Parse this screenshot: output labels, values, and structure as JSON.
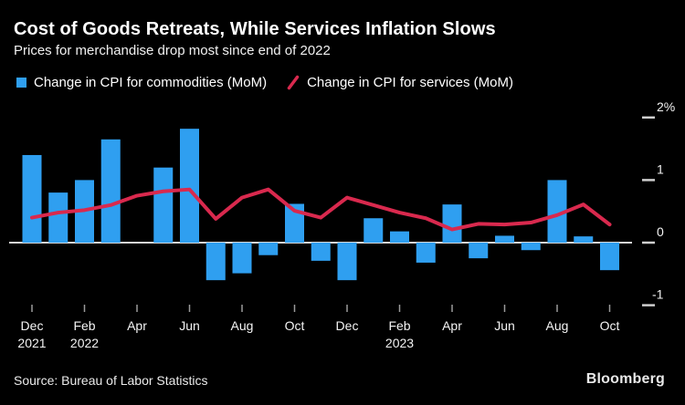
{
  "header": {
    "title": "Cost of Goods Retreats, While Services Inflation Slows",
    "subtitle": "Prices for merchandise drop most since end of 2022"
  },
  "legend": [
    {
      "label": "Change in CPI for commodities (MoM)",
      "marker": "square",
      "color": "#2f9ff0"
    },
    {
      "label": "Change in CPI for services (MoM)",
      "marker": "slash",
      "color": "#d9294e"
    }
  ],
  "chart_data": {
    "type": "combo",
    "x": [
      "Dec 2021",
      "Jan 2022",
      "Feb 2022",
      "Mar 2022",
      "Apr 2022",
      "May 2022",
      "Jun 2022",
      "Jul 2022",
      "Aug 2022",
      "Sep 2022",
      "Oct 2022",
      "Nov 2022",
      "Dec 2022",
      "Jan 2023",
      "Feb 2023",
      "Mar 2023",
      "Apr 2023",
      "May 2023",
      "Jun 2023",
      "Jul 2023",
      "Aug 2023",
      "Sep 2023",
      "Oct 2023"
    ],
    "series": [
      {
        "name": "Change in CPI for commodities (MoM)",
        "type": "bar",
        "color": "#2f9ff0",
        "values": [
          1.4,
          0.8,
          1.0,
          1.65,
          0.0,
          1.2,
          1.82,
          -0.6,
          -0.49,
          -0.2,
          0.62,
          -0.29,
          -0.6,
          0.39,
          0.18,
          -0.32,
          0.61,
          -0.25,
          0.11,
          -0.12,
          1.0,
          0.1,
          -0.44
        ]
      },
      {
        "name": "Change in CPI for services (MoM)",
        "type": "line",
        "color": "#d9294e",
        "values": [
          0.4,
          0.48,
          0.52,
          0.6,
          0.75,
          0.82,
          0.85,
          0.38,
          0.72,
          0.85,
          0.51,
          0.4,
          0.72,
          0.6,
          0.48,
          0.39,
          0.21,
          0.3,
          0.29,
          0.32,
          0.44,
          0.61,
          0.29
        ]
      }
    ],
    "unit": "%",
    "ylim": [
      -1.1,
      2.25
    ],
    "grid": false,
    "legend_position": "top",
    "y_ticks": [
      {
        "label": "2%",
        "value": 2
      },
      {
        "label": "1",
        "value": 1
      },
      {
        "label": "0",
        "value": 0
      },
      {
        "label": "-1",
        "value": -1
      }
    ],
    "x_ticks": [
      {
        "index": 0,
        "label": "Dec",
        "year": "2021"
      },
      {
        "index": 2,
        "label": "Feb",
        "year": "2022"
      },
      {
        "index": 4,
        "label": "Apr"
      },
      {
        "index": 6,
        "label": "Jun"
      },
      {
        "index": 8,
        "label": "Aug"
      },
      {
        "index": 10,
        "label": "Oct"
      },
      {
        "index": 12,
        "label": "Dec"
      },
      {
        "index": 14,
        "label": "Feb",
        "year": "2023"
      },
      {
        "index": 16,
        "label": "Apr"
      },
      {
        "index": 18,
        "label": "Jun"
      },
      {
        "index": 20,
        "label": "Aug"
      },
      {
        "index": 22,
        "label": "Oct"
      }
    ],
    "colors": {
      "background": "#000000",
      "baseline": "#d6d6d6",
      "axis_tick": "#9a9a9a",
      "text": "#ffffff"
    }
  },
  "footer": {
    "source": "Source: Bureau of Labor Statistics",
    "logo": "Bloomberg"
  }
}
